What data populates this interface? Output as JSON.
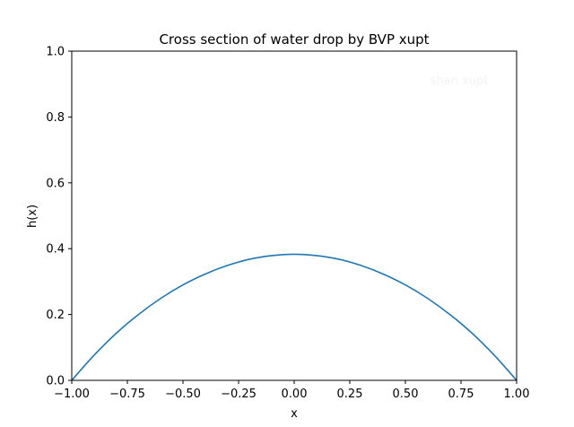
{
  "chart_data": {
    "type": "line",
    "title": "Cross section of water drop by BVP xupt",
    "xlabel": "x",
    "ylabel": "h(x)",
    "xlim": [
      -1.0,
      1.0
    ],
    "ylim": [
      0.0,
      1.0
    ],
    "x_ticks": [
      "−1.00",
      "−0.75",
      "−0.50",
      "−0.25",
      "0.00",
      "0.25",
      "0.50",
      "0.75",
      "1.00"
    ],
    "y_ticks": [
      "0.0",
      "0.2",
      "0.4",
      "0.6",
      "0.8",
      "1.0"
    ],
    "watermark": "shan xupt",
    "grid": false,
    "series": [
      {
        "color": "#1f77b4",
        "x": [
          -1.0,
          -0.9,
          -0.8,
          -0.7,
          -0.6,
          -0.5,
          -0.4,
          -0.3,
          -0.2,
          -0.1,
          0.0,
          0.1,
          0.2,
          0.3,
          0.4,
          0.5,
          0.6,
          0.7,
          0.8,
          0.9,
          1.0
        ],
        "y": [
          0.0,
          0.076,
          0.143,
          0.2,
          0.249,
          0.29,
          0.323,
          0.349,
          0.368,
          0.379,
          0.383,
          0.379,
          0.368,
          0.349,
          0.323,
          0.29,
          0.249,
          0.2,
          0.143,
          0.076,
          0.0
        ]
      }
    ]
  }
}
